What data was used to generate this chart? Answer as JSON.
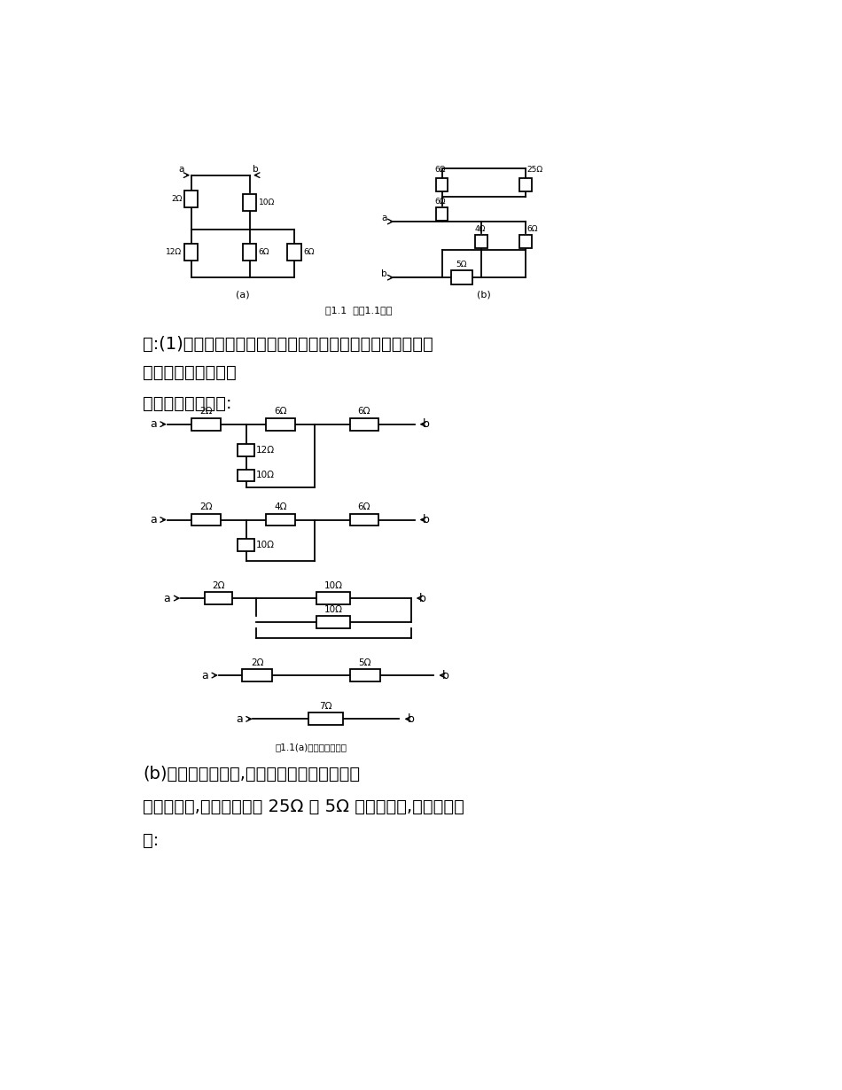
{
  "bg_color": "#ffffff",
  "line_color": "#000000",
  "fig1_caption": "图1.1  习题1.1的图",
  "text1": "解:(1)在求解电阻网络的等效电阻时，应先将电路化简并转化",
  "text2": "为常规的直流电路。",
  "text3": "该电路可等效化为:",
  "fig2_caption": "图1.1(a)的等效变换电路",
  "text4": "(b)先将电路图化简,并转化为常规直流电路。",
  "text5": "就本题而言,仔细分析发现 25Ω 和 5Ω 电阻被短路,则原图可化",
  "text6": "为:"
}
